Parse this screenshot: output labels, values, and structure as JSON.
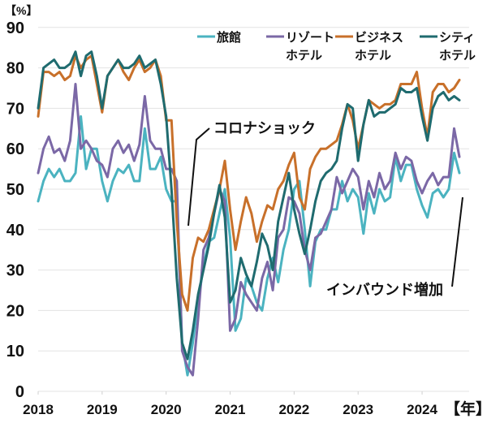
{
  "chart_data": {
    "type": "line",
    "title": "",
    "ylabel": "【%】",
    "xlabel": "【年】",
    "ylim": [
      0,
      90
    ],
    "yticks": [
      0,
      10,
      20,
      30,
      40,
      50,
      60,
      70,
      80,
      90
    ],
    "ytick_labels": [
      "0",
      "10",
      "20",
      "30",
      "40",
      "50",
      "60",
      "70",
      "80",
      "90"
    ],
    "x_start": "2018-01",
    "x_frequency": "monthly",
    "xticks": [
      "2018",
      "2019",
      "2020",
      "2021",
      "2022",
      "2023",
      "2024"
    ],
    "grid": true,
    "legend_position": "top-right",
    "series": [
      {
        "name": "旅館",
        "legend_lines": [
          "旅館"
        ],
        "color": "#4bb3c0",
        "values": [
          47,
          52,
          55,
          53,
          55,
          52,
          52,
          54,
          68,
          55,
          60,
          60,
          52,
          47,
          52,
          55,
          54,
          56,
          52,
          52,
          65,
          55,
          55,
          58,
          50,
          47,
          47,
          12,
          4,
          12,
          22,
          31,
          37,
          38,
          44,
          50,
          38,
          15,
          18,
          28,
          26,
          22,
          20,
          28,
          33,
          27,
          35,
          40,
          50,
          52,
          40,
          26,
          37,
          40,
          40,
          45,
          45,
          52,
          47,
          50,
          48,
          39,
          49,
          44,
          50,
          47,
          48,
          58,
          52,
          56,
          56,
          50,
          46,
          43,
          49,
          50,
          48,
          50,
          59,
          54
        ],
        "anchor_months": []
      },
      {
        "name": "リゾートホテル",
        "legend_lines": [
          "リゾート",
          "ホテル"
        ],
        "color": "#7b68a6",
        "values": [
          54,
          60,
          63,
          59,
          60,
          57,
          62,
          76,
          60,
          62,
          60,
          57,
          56,
          53,
          60,
          62,
          59,
          61,
          57,
          61,
          73,
          62,
          60,
          60,
          55,
          55,
          52,
          10,
          6,
          4,
          18,
          35,
          38,
          44,
          50,
          47,
          15,
          18,
          27,
          24,
          22,
          20,
          28,
          32,
          25,
          38,
          40,
          48,
          47,
          44,
          35,
          30,
          38,
          39,
          42,
          45,
          53,
          49,
          52,
          55,
          53,
          45,
          52,
          48,
          54,
          50,
          52,
          59,
          55,
          58,
          57,
          52,
          49,
          52,
          54,
          51,
          53,
          53,
          65,
          58
        ],
        "anchor_months": []
      },
      {
        "name": "ビジネスホテル",
        "legend_lines": [
          "ビジネス",
          "ホテル"
        ],
        "color": "#c8702a",
        "values": [
          68,
          79,
          79,
          78,
          79,
          77,
          78,
          83,
          80,
          82,
          83,
          76,
          69,
          78,
          80,
          82,
          79,
          77,
          80,
          82,
          79,
          80,
          82,
          78,
          67,
          67,
          42,
          24,
          20,
          33,
          38,
          37,
          40,
          45,
          50,
          57,
          45,
          35,
          42,
          48,
          44,
          37,
          42,
          46,
          45,
          50,
          52,
          56,
          59,
          48,
          45,
          55,
          58,
          60,
          60,
          61,
          62,
          66,
          71,
          67,
          60,
          66,
          72,
          71,
          70,
          71,
          71,
          72,
          76,
          76,
          76,
          79,
          70,
          63,
          74,
          76,
          76,
          74,
          75,
          77
        ],
        "anchor_months": []
      },
      {
        "name": "シティホテル",
        "legend_lines": [
          "シティ",
          "ホテル"
        ],
        "color": "#1f6b6f",
        "values": [
          70,
          80,
          81,
          82,
          80,
          80,
          81,
          84,
          78,
          83,
          84,
          78,
          70,
          78,
          80,
          82,
          80,
          80,
          81,
          83,
          80,
          81,
          82,
          76,
          68,
          50,
          28,
          12,
          8,
          15,
          24,
          30,
          36,
          44,
          51,
          43,
          22,
          25,
          33,
          29,
          26,
          32,
          39,
          36,
          30,
          42,
          48,
          54,
          45,
          39,
          34,
          40,
          47,
          52,
          54,
          55,
          57,
          65,
          71,
          70,
          57,
          66,
          72,
          68,
          69,
          69,
          70,
          71,
          75,
          74,
          74,
          75,
          68,
          62,
          70,
          73,
          74,
          72,
          73,
          72
        ],
        "anchor_months": []
      }
    ],
    "annotations": [
      {
        "text": "コロナショック",
        "points_to": "2020-04"
      },
      {
        "text": "インバウンド増加",
        "points_to": "2024-07"
      }
    ]
  }
}
